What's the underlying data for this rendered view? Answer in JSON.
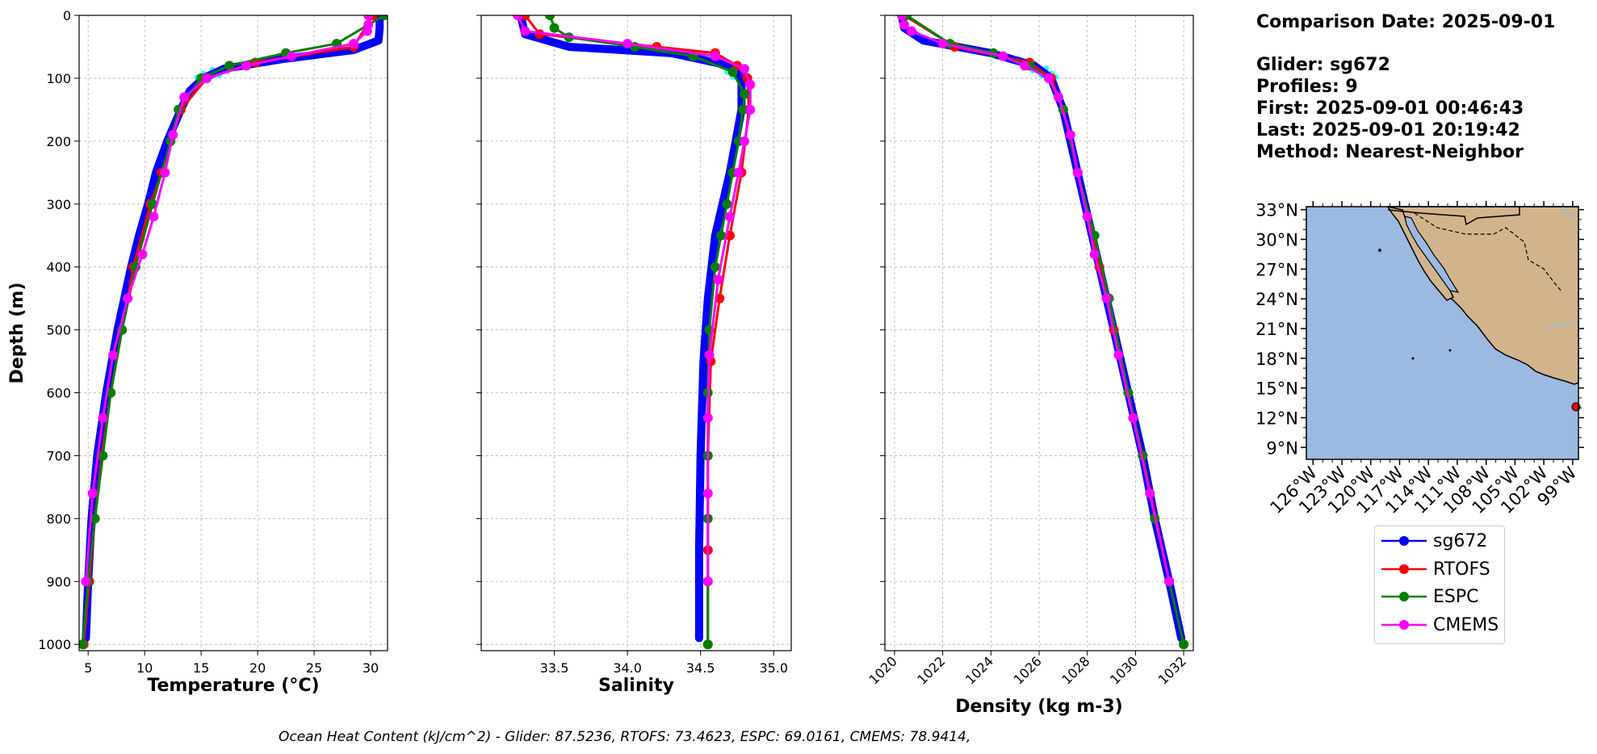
{
  "info": {
    "date_line": "Comparison Date: 2025-09-01",
    "glider_line": "Glider: sg672",
    "profiles_line": "Profiles: 9",
    "first_line": "First: 2025-09-01 00:46:43",
    "last_line": "Last: 2025-09-01 20:19:42",
    "method_line": "Method: Nearest-Neighbor"
  },
  "footer": "Ocean Heat Content (kJ/cm^2) - Glider: 87.5236,  RTOFS: 73.4623,  ESPC: 69.0161,  CMEMS: 78.9414,",
  "colors": {
    "sg672": "#0000ff",
    "RTOFS": "#ff0000",
    "ESPC": "#007f00",
    "CMEMS": "#ff00ff",
    "glider_raw": "#00ffff",
    "ocean": "#9bb9e1",
    "land": "#d2b48c"
  },
  "legend": [
    {
      "name": "sg672",
      "color": "#0000ff"
    },
    {
      "name": "RTOFS",
      "color": "#ff0000"
    },
    {
      "name": "ESPC",
      "color": "#007f00"
    },
    {
      "name": "CMEMS",
      "color": "#ff00ff"
    }
  ],
  "chart_data": [
    {
      "type": "line",
      "xlabel": "Temperature (°C)",
      "ylabel": "Depth (m)",
      "xlim": [
        4.2,
        31.5
      ],
      "ylim": [
        1010,
        0
      ],
      "xticks": [
        "5",
        "10",
        "15",
        "20",
        "25",
        "30"
      ],
      "yticks": [
        "0",
        "100",
        "200",
        "300",
        "400",
        "500",
        "600",
        "700",
        "800",
        "900",
        "1000"
      ],
      "grid": true,
      "series": [
        {
          "name": "sg672",
          "depth": [
            0,
            20,
            40,
            55,
            70,
            85,
            100,
            120,
            150,
            200,
            250,
            300,
            350,
            400,
            500,
            600,
            700,
            800,
            900,
            990
          ],
          "values": [
            30.8,
            30.8,
            30.7,
            28.5,
            22,
            17,
            15.2,
            14.0,
            13.2,
            12.0,
            11.0,
            10.3,
            9.5,
            8.8,
            7.6,
            6.6,
            5.8,
            5.3,
            5.0,
            4.8
          ]
        },
        {
          "name": "RTOFS",
          "depth": [
            0,
            50,
            75,
            100,
            150,
            250,
            300,
            400,
            500,
            600,
            700,
            800,
            900,
            1000
          ],
          "values": [
            30.2,
            28.5,
            19.8,
            15.5,
            13.2,
            11.5,
            10.5,
            9.0,
            8.0,
            7.0,
            6.2,
            5.6,
            5.1,
            4.6
          ]
        },
        {
          "name": "ESPC",
          "depth": [
            0,
            45,
            60,
            80,
            100,
            150,
            200,
            300,
            400,
            500,
            600,
            700,
            800,
            900,
            1000
          ],
          "values": [
            31.2,
            27.0,
            22.5,
            17.5,
            15.0,
            13.0,
            12.3,
            10.7,
            9.2,
            8.0,
            7.0,
            6.3,
            5.6,
            5.0,
            4.5
          ]
        },
        {
          "name": "CMEMS",
          "depth": [
            0,
            15,
            25,
            45,
            65,
            80,
            100,
            130,
            190,
            250,
            320,
            380,
            450,
            540,
            640,
            760,
            900
          ],
          "values": [
            29.8,
            29.8,
            29.7,
            28.5,
            23.0,
            19.0,
            15.5,
            13.5,
            12.5,
            11.8,
            10.8,
            9.8,
            8.5,
            7.2,
            6.3,
            5.4,
            4.8
          ]
        }
      ]
    },
    {
      "type": "line",
      "xlabel": "Salinity",
      "xlim": [
        33.0,
        35.12
      ],
      "ylim": [
        1010,
        0
      ],
      "xticks": [
        "33.5",
        "34.0",
        "34.5",
        "35.0"
      ],
      "grid": true,
      "series": [
        {
          "name": "sg672",
          "depth": [
            0,
            30,
            50,
            60,
            80,
            100,
            150,
            250,
            350,
            450,
            550,
            700,
            850,
            990
          ],
          "values": [
            33.27,
            33.3,
            33.6,
            34.3,
            34.7,
            34.78,
            34.78,
            34.7,
            34.6,
            34.55,
            34.52,
            34.5,
            34.49,
            34.49
          ]
        },
        {
          "name": "RTOFS",
          "depth": [
            0,
            30,
            50,
            60,
            80,
            100,
            150,
            250,
            350,
            450,
            550,
            700,
            850,
            1000
          ],
          "values": [
            33.3,
            33.4,
            34.2,
            34.6,
            34.75,
            34.82,
            34.83,
            34.78,
            34.7,
            34.63,
            34.57,
            34.55,
            34.55,
            34.55
          ]
        },
        {
          "name": "ESPC",
          "depth": [
            0,
            20,
            35,
            50,
            65,
            90,
            125,
            150,
            200,
            250,
            300,
            350,
            400,
            500,
            600,
            700,
            800,
            900,
            1000
          ],
          "values": [
            33.47,
            33.5,
            33.6,
            34.05,
            34.45,
            34.72,
            34.8,
            34.79,
            34.76,
            34.72,
            34.68,
            34.64,
            34.6,
            34.56,
            34.55,
            34.55,
            34.55,
            34.55,
            34.55
          ]
        },
        {
          "name": "CMEMS",
          "depth": [
            0,
            25,
            45,
            65,
            85,
            110,
            150,
            200,
            250,
            320,
            420,
            540,
            640,
            760,
            900
          ],
          "values": [
            33.25,
            33.3,
            34.0,
            34.6,
            34.8,
            34.84,
            34.84,
            34.8,
            34.76,
            34.7,
            34.62,
            34.56,
            34.55,
            34.55,
            34.55
          ]
        }
      ]
    },
    {
      "type": "line",
      "xlabel": "Density (kg m-3)",
      "xlim": [
        1019.6,
        1032.4
      ],
      "ylim": [
        1010,
        0
      ],
      "xticks": [
        "1020",
        "1022",
        "1024",
        "1026",
        "1028",
        "1030",
        "1032"
      ],
      "grid": true,
      "series": [
        {
          "name": "sg672",
          "depth": [
            0,
            20,
            40,
            60,
            80,
            100,
            150,
            200,
            300,
            400,
            500,
            600,
            700,
            800,
            900,
            990
          ],
          "values": [
            1020.3,
            1020.4,
            1021.2,
            1024.0,
            1025.8,
            1026.5,
            1027.0,
            1027.3,
            1027.9,
            1028.5,
            1029.1,
            1029.7,
            1030.3,
            1030.8,
            1031.4,
            1031.9
          ]
        },
        {
          "name": "RTOFS",
          "depth": [
            0,
            50,
            75,
            100,
            150,
            250,
            400,
            500,
            700,
            900,
            1000
          ],
          "values": [
            1020.4,
            1022.5,
            1025.6,
            1026.5,
            1027.0,
            1027.6,
            1028.5,
            1029.1,
            1030.3,
            1031.4,
            1032.0
          ]
        },
        {
          "name": "ESPC",
          "depth": [
            0,
            45,
            60,
            80,
            100,
            150,
            250,
            350,
            450,
            600,
            700,
            800,
            900,
            1000
          ],
          "values": [
            1020.5,
            1022.3,
            1024.1,
            1025.6,
            1026.4,
            1027.0,
            1027.6,
            1028.3,
            1028.9,
            1029.7,
            1030.3,
            1030.8,
            1031.4,
            1032.0
          ]
        },
        {
          "name": "CMEMS",
          "depth": [
            0,
            15,
            25,
            45,
            65,
            80,
            100,
            130,
            190,
            250,
            320,
            380,
            450,
            540,
            640,
            760,
            900
          ],
          "values": [
            1020.3,
            1020.4,
            1020.7,
            1022.0,
            1024.5,
            1025.4,
            1026.4,
            1026.8,
            1027.3,
            1027.6,
            1028.0,
            1028.3,
            1028.8,
            1029.3,
            1029.9,
            1030.6,
            1031.4
          ]
        }
      ]
    }
  ],
  "map": {
    "lat_ticks": [
      "33°N",
      "30°N",
      "27°N",
      "24°N",
      "21°N",
      "18°N",
      "15°N",
      "12°N",
      "9°N"
    ],
    "lon_ticks": [
      "126°W",
      "123°W",
      "120°W",
      "117°W",
      "114°W",
      "111°W",
      "108°W",
      "105°W",
      "102°W",
      "99°W"
    ],
    "extent_lon": [
      -126.7,
      -98.4
    ],
    "extent_lat": [
      7.8,
      33.3
    ],
    "glider_position": {
      "lon": -98.5,
      "lat": 13.6
    }
  }
}
